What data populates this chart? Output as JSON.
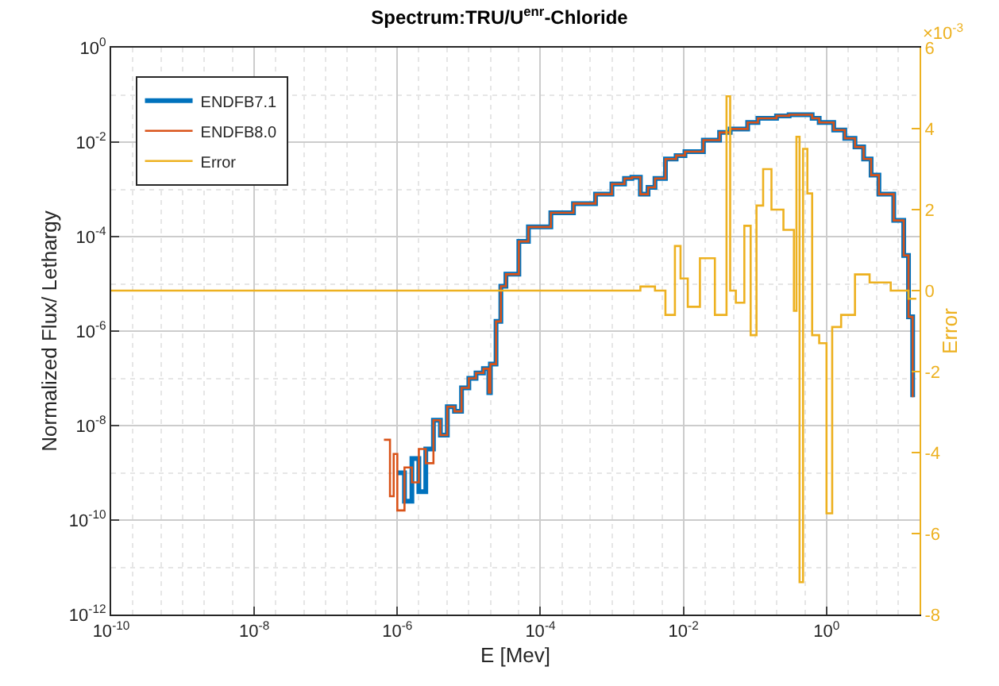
{
  "chart_data": {
    "type": "step",
    "title": "Spectrum:TRU/U$^{enr}$-Chloride",
    "xlabel": "E [Mev]",
    "ylabel": "Normalized Flux/ Lethargy",
    "y2label": "Error",
    "log": "xy",
    "grid": true,
    "legend": "top left",
    "marker": "none",
    "line_style": "solid",
    "xlim": [
      1e-10,
      20
    ],
    "ylim": [
      1e-12,
      1
    ],
    "y2lim": [
      -8,
      6
    ],
    "xticks": [
      {
        "value": 1e-10,
        "label": "10$^{-10}$"
      },
      {
        "value": 1e-08,
        "label": "10$^{-8}$"
      },
      {
        "value": 1e-06,
        "label": "10$^{-6}$"
      },
      {
        "value": 0.0001,
        "label": "10$^{-4}$"
      },
      {
        "value": 0.01,
        "label": "10$^{-2}$"
      },
      {
        "value": 1,
        "label": "10$^{0}$"
      }
    ],
    "yticks": [
      {
        "value": 1e-12,
        "label": "10$^{-12}$"
      },
      {
        "value": 1e-10,
        "label": "10$^{-10}$"
      },
      {
        "value": 1e-08,
        "label": "10$^{-8}$"
      },
      {
        "value": 1e-06,
        "label": "10$^{-6}$"
      },
      {
        "value": 0.0001,
        "label": "10$^{-4}$"
      },
      {
        "value": 0.01,
        "label": "10$^{-2}$"
      },
      {
        "value": 1,
        "label": "10$^{0}$"
      }
    ],
    "y2ticks": [
      -8,
      -6,
      -4,
      -2,
      0,
      2,
      4,
      6
    ],
    "annotations": [
      "×10$^{-3}$"
    ],
    "x": [
      6.5e-07,
      7.9e-07,
      8.9e-07,
      1e-06,
      1.26e-06,
      1.6e-06,
      2e-06,
      2.5e-06,
      3.2e-06,
      4e-06,
      5e-06,
      6.3e-06,
      7.9e-06,
      1e-05,
      1.26e-05,
      1.6e-05,
      1.9e-05,
      2e-05,
      2.4e-05,
      2.8e-05,
      3.3e-05,
      5e-05,
      6.8e-05,
      0.00014,
      0.00029,
      0.00059,
      0.001,
      0.0015,
      0.0019,
      0.0025,
      0.0032,
      0.004,
      0.0056,
      0.0079,
      0.0105,
      0.019,
      0.032,
      0.045,
      0.079,
      0.11,
      0.2,
      0.3,
      0.49,
      0.63,
      0.79,
      1.26,
      1.8,
      2.5,
      3.3,
      4.2,
      5.4,
      8.7,
      12,
      14,
      16
    ],
    "series": [
      {
        "name": "ENDFB7.1",
        "color": "#0072bd",
        "values": [
          null,
          null,
          null,
          1e-09,
          2.5e-10,
          2e-09,
          4e-10,
          3.2e-09,
          1.3e-08,
          6.3e-09,
          2.5e-08,
          2e-08,
          6.3e-08,
          1e-07,
          1.3e-07,
          1.6e-07,
          5e-08,
          2e-07,
          1.6e-06,
          8.9e-06,
          1.6e-05,
          7.9e-05,
          0.00016,
          0.00032,
          0.0005,
          0.00079,
          0.0013,
          0.0017,
          0.0018,
          0.00079,
          0.0011,
          0.0017,
          0.0044,
          0.0052,
          0.0063,
          0.011,
          0.016,
          0.019,
          0.026,
          0.032,
          0.036,
          0.038,
          0.038,
          0.032,
          0.026,
          0.018,
          0.012,
          0.0079,
          0.0044,
          0.002,
          0.00079,
          0.00022,
          4e-05,
          2e-06,
          4e-08
        ]
      },
      {
        "name": "ENDFB8.0",
        "color": "#d95319",
        "values": [
          5e-09,
          3.2e-10,
          2.5e-09,
          1.6e-10,
          1.3e-09,
          6.3e-10,
          3.2e-09,
          1.6e-09,
          1.3e-08,
          6.3e-09,
          2.5e-08,
          2e-08,
          6.3e-08,
          1e-07,
          1.3e-07,
          1.6e-07,
          5e-08,
          2e-07,
          1.6e-06,
          8.9e-06,
          1.6e-05,
          7.9e-05,
          0.00016,
          0.00032,
          0.0005,
          0.00079,
          0.0013,
          0.0017,
          0.0018,
          0.00079,
          0.0011,
          0.0017,
          0.0044,
          0.0052,
          0.0063,
          0.011,
          0.016,
          0.019,
          0.026,
          0.032,
          0.036,
          0.038,
          0.038,
          0.032,
          0.026,
          0.018,
          0.012,
          0.0079,
          0.0044,
          0.002,
          0.00079,
          0.00022,
          4e-05,
          2e-06,
          4e-08
        ]
      },
      {
        "name": "Error",
        "color": "#edb120",
        "axis": "y2",
        "x": [
          1e-10,
          1e-06,
          3.2e-05,
          0.00063,
          0.0025,
          0.004,
          0.0056,
          0.0076,
          0.0091,
          0.0115,
          0.017,
          0.0275,
          0.04,
          0.045,
          0.054,
          0.071,
          0.087,
          0.105,
          0.13,
          0.17,
          0.25,
          0.35,
          0.38,
          0.42,
          0.47,
          0.54,
          0.63,
          0.79,
          1.0,
          1.2,
          1.6,
          2.5,
          4.0,
          7.9,
          14,
          18
        ],
        "values": [
          0,
          0,
          0,
          0,
          0.1,
          0,
          -0.6,
          1.1,
          0.3,
          -0.4,
          0.8,
          -0.6,
          4.8,
          0,
          -0.3,
          1.6,
          -1.1,
          2.1,
          3.0,
          2.0,
          1.5,
          -0.5,
          3.8,
          -7.2,
          3.5,
          2.4,
          -1.1,
          -1.3,
          -5.5,
          -0.9,
          -0.6,
          0.4,
          0.2,
          0,
          -0.2,
          -0.2
        ]
      }
    ]
  }
}
